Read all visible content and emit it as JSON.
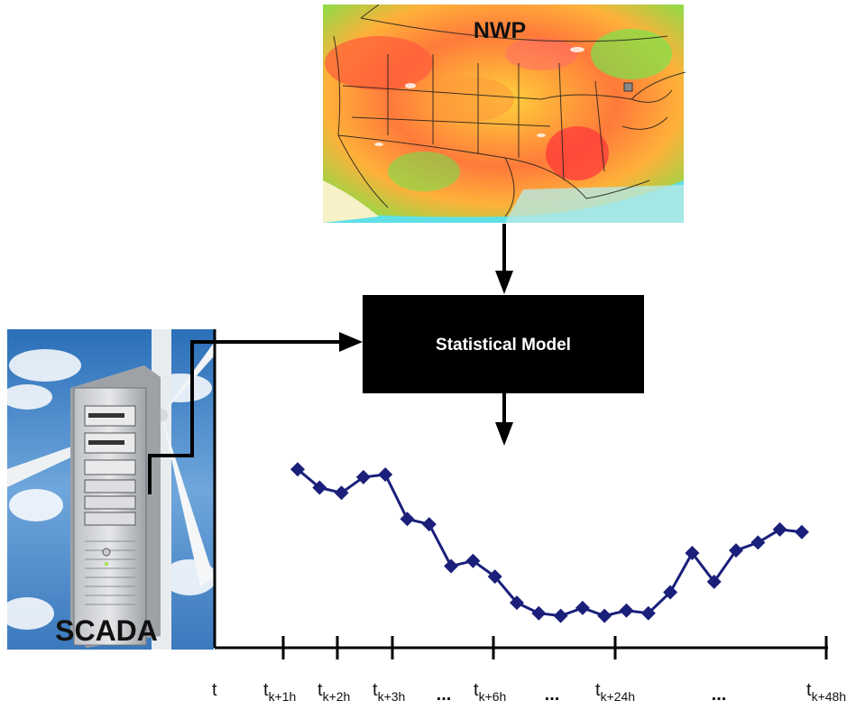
{
  "nwp_label": "NWP",
  "model_label": "Statistical Model",
  "scada_label": "SCADA",
  "colors": {
    "series": "#1a1f7a",
    "model_box": "#000000",
    "map_water": "#5fe0e6",
    "map_land_warm": "#ff6a3d",
    "map_land_mid": "#ffd23a",
    "map_land_cool": "#6be34f"
  },
  "icons": {
    "map": "weather-map-icon",
    "server": "server-tower-icon",
    "turbine": "wind-turbine-icon"
  },
  "chart_data": {
    "type": "line",
    "values": [
      0.62,
      0.55,
      0.53,
      0.59,
      0.6,
      0.43,
      0.41,
      0.25,
      0.27,
      0.21,
      0.11,
      0.07,
      0.06,
      0.09,
      0.06,
      0.08,
      0.07,
      0.15,
      0.3,
      0.19,
      0.31,
      0.34,
      0.39,
      0.38
    ],
    "axis_ticks": [
      {
        "base": "t",
        "sub": ""
      },
      {
        "base": "t",
        "sub": "k+1h"
      },
      {
        "base": "t",
        "sub": "k+2h"
      },
      {
        "base": "t",
        "sub": "k+3h"
      },
      {
        "base": "t",
        "sub": "k+6h"
      },
      {
        "base": "t",
        "sub": "k+24h"
      },
      {
        "base": "t",
        "sub": "k+48h"
      }
    ],
    "ellipsis": [
      "...",
      "...",
      "..."
    ]
  }
}
